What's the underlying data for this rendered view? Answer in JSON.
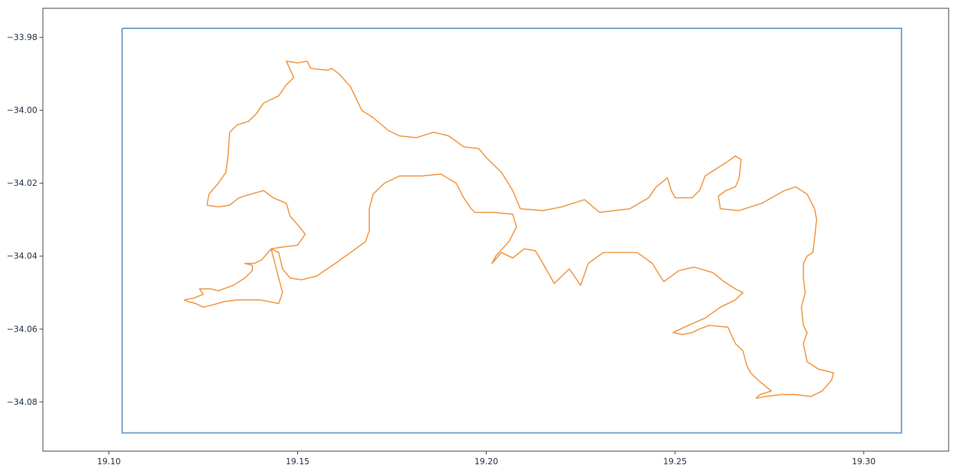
{
  "chart_data": {
    "type": "line",
    "title": "",
    "xlabel": "",
    "ylabel": "",
    "xlim": [
      19.0825,
      19.3225
    ],
    "ylim": [
      -34.0935,
      -33.972
    ],
    "grid": false,
    "x_ticks": [
      {
        "value": 19.1,
        "label": "19.10"
      },
      {
        "value": 19.15,
        "label": "19.15"
      },
      {
        "value": 19.2,
        "label": "19.20"
      },
      {
        "value": 19.25,
        "label": "19.25"
      },
      {
        "value": 19.3,
        "label": "19.30"
      }
    ],
    "y_ticks": [
      {
        "value": -33.98,
        "label": "−33.98"
      },
      {
        "value": -34.0,
        "label": "−34.00"
      },
      {
        "value": -34.02,
        "label": "−34.02"
      },
      {
        "value": -34.04,
        "label": "−34.04"
      },
      {
        "value": -34.06,
        "label": "−34.06"
      },
      {
        "value": -34.08,
        "label": "−34.08"
      }
    ],
    "series": [
      {
        "color": "#6f9bc1",
        "points": [
          [
            19.1035,
            -33.9775
          ],
          [
            19.31,
            -33.9775
          ],
          [
            19.31,
            -34.0885
          ],
          [
            19.1035,
            -34.0885
          ],
          [
            19.1035,
            -33.9775
          ]
        ]
      },
      {
        "color": "#f0913a",
        "points": [
          [
            19.147,
            -33.9865
          ],
          [
            19.15,
            -33.987
          ],
          [
            19.1525,
            -33.9865
          ],
          [
            19.1535,
            -33.9885
          ],
          [
            19.158,
            -33.989
          ],
          [
            19.159,
            -33.9885
          ],
          [
            19.161,
            -33.99
          ],
          [
            19.164,
            -33.9935
          ],
          [
            19.167,
            -34.0
          ],
          [
            19.17,
            -34.002
          ],
          [
            19.174,
            -34.0055
          ],
          [
            19.177,
            -34.007
          ],
          [
            19.1815,
            -34.0075
          ],
          [
            19.186,
            -34.006
          ],
          [
            19.19,
            -34.007
          ],
          [
            19.194,
            -34.01
          ],
          [
            19.198,
            -34.0105
          ],
          [
            19.2,
            -34.013
          ],
          [
            19.204,
            -34.017
          ],
          [
            19.207,
            -34.022
          ],
          [
            19.209,
            -34.027
          ],
          [
            19.215,
            -34.0275
          ],
          [
            19.22,
            -34.0265
          ],
          [
            19.226,
            -34.0245
          ],
          [
            19.23,
            -34.028
          ],
          [
            19.238,
            -34.027
          ],
          [
            19.243,
            -34.024
          ],
          [
            19.245,
            -34.021
          ],
          [
            19.248,
            -34.0185
          ],
          [
            19.249,
            -34.022
          ],
          [
            19.25,
            -34.024
          ],
          [
            19.2545,
            -34.024
          ],
          [
            19.2565,
            -34.022
          ],
          [
            19.258,
            -34.018
          ],
          [
            19.261,
            -34.016
          ],
          [
            19.264,
            -34.014
          ],
          [
            19.266,
            -34.0125
          ],
          [
            19.2675,
            -34.0135
          ],
          [
            19.267,
            -34.0185
          ],
          [
            19.266,
            -34.021
          ],
          [
            19.2635,
            -34.022
          ],
          [
            19.2615,
            -34.0235
          ],
          [
            19.262,
            -34.027
          ],
          [
            19.267,
            -34.0275
          ],
          [
            19.273,
            -34.0255
          ],
          [
            19.279,
            -34.022
          ],
          [
            19.282,
            -34.021
          ],
          [
            19.285,
            -34.023
          ],
          [
            19.287,
            -34.027
          ],
          [
            19.2875,
            -34.03
          ],
          [
            19.287,
            -34.035
          ],
          [
            19.2865,
            -34.039
          ],
          [
            19.285,
            -34.04
          ],
          [
            19.284,
            -34.042
          ],
          [
            19.284,
            -34.046
          ],
          [
            19.2845,
            -34.05
          ],
          [
            19.2835,
            -34.054
          ],
          [
            19.284,
            -34.059
          ],
          [
            19.285,
            -34.061
          ],
          [
            19.284,
            -34.064
          ],
          [
            19.285,
            -34.069
          ],
          [
            19.288,
            -34.071
          ],
          [
            19.292,
            -34.072
          ],
          [
            19.2915,
            -34.074
          ],
          [
            19.289,
            -34.077
          ],
          [
            19.286,
            -34.0785
          ],
          [
            19.282,
            -34.078
          ],
          [
            19.278,
            -34.078
          ],
          [
            19.274,
            -34.0785
          ],
          [
            19.2715,
            -34.079
          ],
          [
            19.2725,
            -34.078
          ],
          [
            19.2755,
            -34.077
          ],
          [
            19.272,
            -34.074
          ],
          [
            19.27,
            -34.072
          ],
          [
            19.269,
            -34.07
          ],
          [
            19.268,
            -34.066
          ],
          [
            19.266,
            -34.064
          ],
          [
            19.264,
            -34.0595
          ],
          [
            19.259,
            -34.059
          ],
          [
            19.2565,
            -34.06
          ],
          [
            19.2545,
            -34.061
          ],
          [
            19.252,
            -34.0615
          ],
          [
            19.2495,
            -34.061
          ],
          [
            19.2535,
            -34.059
          ],
          [
            19.258,
            -34.057
          ],
          [
            19.262,
            -34.054
          ],
          [
            19.266,
            -34.052
          ],
          [
            19.268,
            -34.05
          ],
          [
            19.266,
            -34.049
          ],
          [
            19.263,
            -34.047
          ],
          [
            19.26,
            -34.0445
          ],
          [
            19.255,
            -34.043
          ],
          [
            19.251,
            -34.044
          ],
          [
            19.247,
            -34.047
          ],
          [
            19.244,
            -34.042
          ],
          [
            19.24,
            -34.039
          ],
          [
            19.236,
            -34.039
          ],
          [
            19.231,
            -34.039
          ],
          [
            19.227,
            -34.042
          ],
          [
            19.225,
            -34.048
          ],
          [
            19.222,
            -34.0435
          ],
          [
            19.218,
            -34.0475
          ],
          [
            19.215,
            -34.042
          ],
          [
            19.213,
            -34.0385
          ],
          [
            19.21,
            -34.038
          ],
          [
            19.207,
            -34.0405
          ],
          [
            19.204,
            -34.039
          ],
          [
            19.2015,
            -34.042
          ],
          [
            19.2025,
            -34.04
          ],
          [
            19.206,
            -34.036
          ],
          [
            19.208,
            -34.032
          ],
          [
            19.207,
            -34.0285
          ],
          [
            19.202,
            -34.028
          ],
          [
            19.197,
            -34.028
          ],
          [
            19.196,
            -34.027
          ],
          [
            19.194,
            -34.024
          ],
          [
            19.192,
            -34.02
          ],
          [
            19.188,
            -34.0175
          ],
          [
            19.183,
            -34.018
          ],
          [
            19.177,
            -34.018
          ],
          [
            19.173,
            -34.02
          ],
          [
            19.17,
            -34.023
          ],
          [
            19.169,
            -34.027
          ],
          [
            19.169,
            -34.033
          ],
          [
            19.168,
            -34.036
          ],
          [
            19.164,
            -34.039
          ],
          [
            19.16,
            -34.042
          ],
          [
            19.155,
            -34.0455
          ],
          [
            19.151,
            -34.0465
          ],
          [
            19.148,
            -34.046
          ],
          [
            19.146,
            -34.0435
          ],
          [
            19.145,
            -34.039
          ],
          [
            19.143,
            -34.038
          ],
          [
            19.146,
            -34.0375
          ],
          [
            19.15,
            -34.037
          ],
          [
            19.152,
            -34.034
          ],
          [
            19.1505,
            -34.032
          ],
          [
            19.148,
            -34.029
          ],
          [
            19.147,
            -34.0255
          ],
          [
            19.1435,
            -34.024
          ],
          [
            19.141,
            -34.022
          ],
          [
            19.1375,
            -34.023
          ],
          [
            19.1345,
            -34.024
          ],
          [
            19.132,
            -34.026
          ],
          [
            19.129,
            -34.0265
          ],
          [
            19.126,
            -34.026
          ],
          [
            19.1265,
            -34.023
          ],
          [
            19.129,
            -34.02
          ],
          [
            19.131,
            -34.017
          ],
          [
            19.1315,
            -34.013
          ],
          [
            19.132,
            -34.006
          ],
          [
            19.134,
            -34.004
          ],
          [
            19.137,
            -34.003
          ],
          [
            19.139,
            -34.001
          ],
          [
            19.141,
            -33.998
          ],
          [
            19.145,
            -33.996
          ],
          [
            19.147,
            -33.993
          ],
          [
            19.149,
            -33.991
          ],
          [
            19.147,
            -33.9865
          ]
        ]
      },
      {
        "color": "#f0913a",
        "points": [
          [
            19.143,
            -34.038
          ],
          [
            19.144,
            -34.042
          ],
          [
            19.145,
            -34.046
          ],
          [
            19.146,
            -34.05
          ],
          [
            19.145,
            -34.053
          ],
          [
            19.14,
            -34.052
          ],
          [
            19.134,
            -34.052
          ],
          [
            19.1305,
            -34.0525
          ],
          [
            19.127,
            -34.0535
          ],
          [
            19.125,
            -34.054
          ],
          [
            19.123,
            -34.053
          ],
          [
            19.121,
            -34.0525
          ],
          [
            19.12,
            -34.052
          ],
          [
            19.1225,
            -34.0515
          ],
          [
            19.125,
            -34.0505
          ],
          [
            19.124,
            -34.049
          ],
          [
            19.127,
            -34.049
          ],
          [
            19.129,
            -34.0495
          ],
          [
            19.133,
            -34.048
          ],
          [
            19.136,
            -34.046
          ],
          [
            19.138,
            -34.044
          ],
          [
            19.138,
            -34.0425
          ],
          [
            19.136,
            -34.042
          ],
          [
            19.1385,
            -34.042
          ],
          [
            19.1405,
            -34.041
          ],
          [
            19.143,
            -34.038
          ]
        ]
      }
    ]
  }
}
